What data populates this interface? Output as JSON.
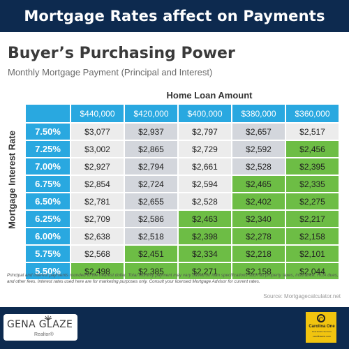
{
  "banner": {
    "title": "Mortgage Rates affect on Payments"
  },
  "heading": {
    "title": "Buyer’s Purchasing Power",
    "subtitle": "Monthly Mortgage Payment (Principal and Interest)"
  },
  "table": {
    "column_group_label": "Home Loan Amount",
    "row_group_label": "Mortgage  Interest Rate",
    "columns": [
      "$440,000",
      "$420,000",
      "$400,000",
      "$380,000",
      "$360,000"
    ],
    "rows": [
      {
        "rate": "7.50%",
        "values": [
          "$3,077",
          "$2,937",
          "$2,797",
          "$2,657",
          "$2,517"
        ]
      },
      {
        "rate": "7.25%",
        "values": [
          "$3,002",
          "$2,865",
          "$2,729",
          "$2,592",
          "$2,456"
        ]
      },
      {
        "rate": "7.00%",
        "values": [
          "$2,927",
          "$2,794",
          "$2,661",
          "$2,528",
          "$2,395"
        ]
      },
      {
        "rate": "6.75%",
        "values": [
          "$2,854",
          "$2,724",
          "$2,594",
          "$2,465",
          "$2,335"
        ]
      },
      {
        "rate": "6.50%",
        "values": [
          "$2,781",
          "$2,655",
          "$2,528",
          "$2,402",
          "$2,275"
        ]
      },
      {
        "rate": "6.25%",
        "values": [
          "$2,709",
          "$2,586",
          "$2,463",
          "$2,340",
          "$2,217"
        ]
      },
      {
        "rate": "6.00%",
        "values": [
          "$2,638",
          "$2,518",
          "$2,398",
          "$2,278",
          "$2,158"
        ]
      },
      {
        "rate": "5.75%",
        "values": [
          "$2,568",
          "$2,451",
          "$2,334",
          "$2,218",
          "$2,101"
        ]
      },
      {
        "rate": "5.50%",
        "values": [
          "$2,498",
          "$2,385",
          "$2,271",
          "$2,158",
          "$2,044"
        ]
      }
    ],
    "green_from_column": [
      5,
      4,
      4,
      3,
      3,
      2,
      2,
      1,
      0
    ],
    "colors": {
      "header": "#29a8e0",
      "green": "#6dbd45",
      "light": "#ececec",
      "dark": "#d3d6dc"
    }
  },
  "footnote": "Principal and interest payments rounded to the nearest dollar. Total Monthly payment may vary based on loan specifications such as property taxes, insurance, HOA dues, and other fees. Interest rates used here are for marketing purposes only. Consult your licensed Mortgage Advisor for current rates.",
  "source": "Source: Mortgagecalculator.net",
  "branding": {
    "agent_name": "GENA GLAZE",
    "agent_title": "Realtor®",
    "brokerage_name": "Carolina One",
    "brokerage_tagline": "Real Estate Services",
    "brokerage_site": "carolinaone.com",
    "brand_color": "#0d2a4f",
    "logo_color": "#f1c40f"
  }
}
